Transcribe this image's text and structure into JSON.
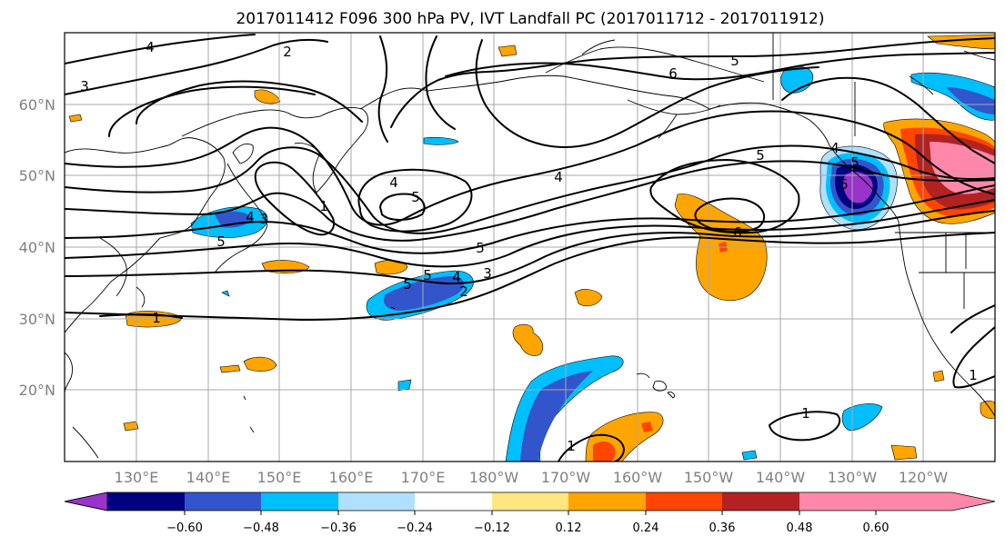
{
  "title": "2017011412 F096 300 hPa PV, IVT Landfall PC (2017011712 - 2017011912)",
  "map": {
    "lon_ticks": [
      "130°E",
      "140°E",
      "150°E",
      "160°E",
      "170°E",
      "180°W",
      "170°W",
      "160°W",
      "150°W",
      "140°W",
      "130°W",
      "120°W"
    ],
    "lat_ticks": [
      "60°N",
      "50°N",
      "40°N",
      "30°N",
      "20°N"
    ],
    "gridlines": true,
    "projection": "cylindrical",
    "lon_range": [
      120,
      250
    ],
    "lat_range": [
      10,
      70
    ]
  },
  "colorbar": {
    "colors": [
      "#9933cc",
      "#000080",
      "#3355cc",
      "#00bfff",
      "#b0e0ff",
      "#ffffff",
      "#ffe680",
      "#ffa500",
      "#ff4500",
      "#b22222",
      "#ff88aa"
    ],
    "levels": [
      "−0.60",
      "−0.48",
      "−0.36",
      "−0.24",
      "−0.12",
      "0.12",
      "0.24",
      "0.36",
      "0.48",
      "0.60"
    ],
    "extend": "both"
  },
  "pv_contour_labels": [
    "4",
    "2",
    "3",
    "6",
    "5",
    "5",
    "4",
    "5",
    "4",
    "1",
    "5",
    "5",
    "3",
    "3",
    "2",
    "5",
    "6",
    "5",
    "4",
    "1",
    "1",
    "1",
    "1",
    "4",
    "5",
    "4",
    "5"
  ]
}
